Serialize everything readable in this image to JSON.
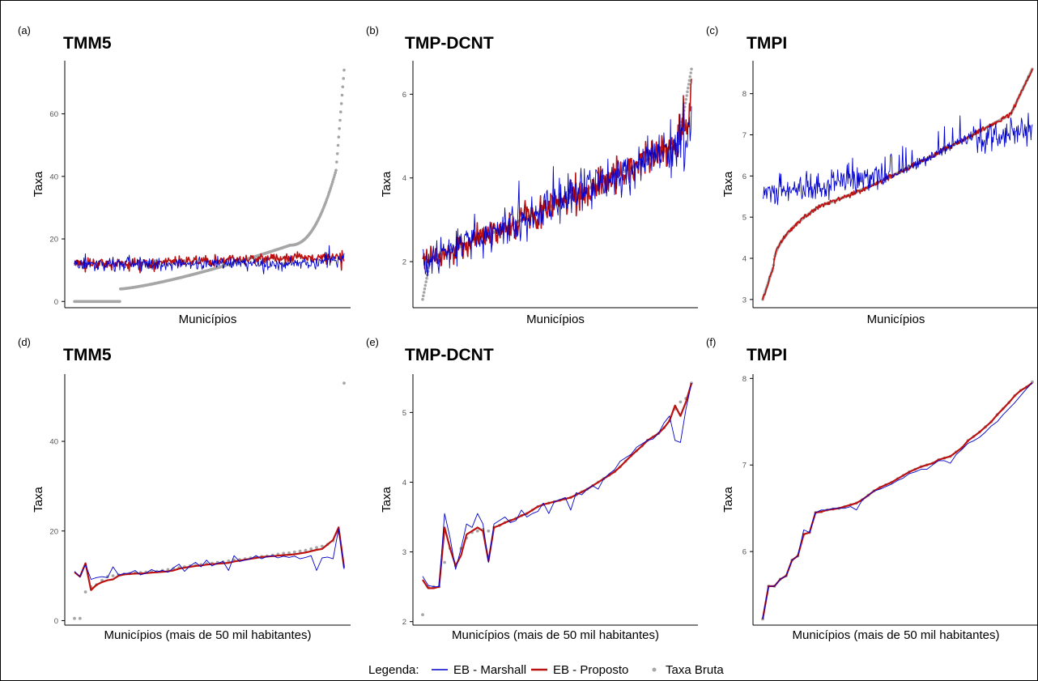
{
  "legend": {
    "title": "Legenda:",
    "items": [
      {
        "label": "EB - Marshall",
        "kind": "line",
        "color": "#0000cc"
      },
      {
        "label": "EB - Proposto",
        "kind": "line",
        "color": "#bb1111"
      },
      {
        "label": "Taxa Bruta",
        "kind": "point",
        "color": "#a6a6a6"
      }
    ]
  },
  "colors": {
    "marshall": "#0000cc",
    "proposto": "#bb1111",
    "bruta": "#a6a6a6",
    "axis": "#000000",
    "tick": "#555555"
  },
  "chart_data": [
    {
      "tag": "(a)",
      "title": "TMM5",
      "type": "line",
      "xlabel": "Municípios",
      "ylabel": "Taxa",
      "yticks": [
        0,
        20,
        40,
        60
      ],
      "ylim": [
        -2,
        77
      ],
      "n": 400,
      "dense": true,
      "shape": "tmm5_all",
      "description_free": true
    },
    {
      "tag": "(b)",
      "title": "TMP-DCNT",
      "type": "line",
      "xlabel": "Municípios",
      "ylabel": "Taxa",
      "yticks": [
        2,
        4,
        6
      ],
      "ylim": [
        0.9,
        6.8
      ],
      "n": 400,
      "dense": true,
      "shape": "dcnt_all"
    },
    {
      "tag": "(c)",
      "title": "TMPI",
      "type": "line",
      "xlabel": "Municípios",
      "ylabel": "Taxa",
      "yticks": [
        3,
        4,
        5,
        6,
        7,
        8
      ],
      "ylim": [
        2.8,
        8.8
      ],
      "n": 400,
      "dense": true,
      "shape": "tmpi_all"
    },
    {
      "tag": "(d)",
      "title": "TMM5",
      "type": "line",
      "xlabel": "Municípios (mais de 50 mil habitantes)",
      "ylabel": "Taxa",
      "yticks": [
        0,
        20,
        40
      ],
      "ylim": [
        -1,
        55
      ],
      "dense": false,
      "series": [
        {
          "name": "EB - Marshall",
          "values": [
            11,
            9.8,
            12.5,
            9.2,
            9.6,
            9.8,
            9.6,
            12,
            10.2,
            10.5,
            10.6,
            11.2,
            10.2,
            10.6,
            11.4,
            10.9,
            11.2,
            10.8,
            11.8,
            12.6,
            11,
            12.2,
            13,
            12,
            13.5,
            12.2,
            12.8,
            13.2,
            11.2,
            14.5,
            13.2,
            13.5,
            13.8,
            14.5,
            13.8,
            14.3,
            14.5,
            14,
            14.4,
            14.1,
            14.4,
            13.8,
            14.1,
            14.5,
            11.2,
            14,
            14.2,
            13.8,
            20.5,
            11.5
          ]
        },
        {
          "name": "EB - Proposto",
          "values": [
            10.8,
            9.8,
            12.8,
            6.8,
            8,
            8.6,
            9,
            9.2,
            10,
            10.3,
            10.4,
            10.5,
            10.5,
            10.6,
            10.7,
            10.8,
            10.9,
            11,
            11.2,
            11.6,
            11.8,
            12,
            12.2,
            12.3,
            12.5,
            12.6,
            12.7,
            12.8,
            12.9,
            13.2,
            13.4,
            13.6,
            13.8,
            14,
            14.2,
            14.3,
            14.4,
            14.5,
            14.6,
            14.7,
            14.8,
            15,
            15.2,
            15.5,
            15.8,
            16,
            17,
            18,
            20.8,
            11.8
          ]
        },
        {
          "name": "Taxa Bruta",
          "values": [
            0.5,
            0.5,
            6.4,
            7.5,
            8,
            9,
            9.8,
            10,
            10.2,
            10.4,
            10.5,
            10.6,
            10.7,
            10.8,
            10.9,
            11,
            11.2,
            11.4,
            11.6,
            11.8,
            12,
            12.2,
            12.3,
            12.5,
            12.7,
            12.8,
            13,
            13.1,
            13.3,
            13.5,
            13.6,
            13.8,
            14,
            14.1,
            14.3,
            14.4,
            14.6,
            14.8,
            15,
            15.1,
            15.3,
            15.5,
            15.7,
            16,
            16.3,
            16.6,
            17,
            17.8,
            19.5,
            53
          ]
        }
      ]
    },
    {
      "tag": "(e)",
      "title": "TMP-DCNT",
      "type": "line",
      "xlabel": "Municípios (mais de 50 mil habitantes)",
      "ylabel": "Taxa",
      "yticks": [
        2,
        3,
        4,
        5
      ],
      "ylim": [
        1.95,
        5.55
      ],
      "dense": false,
      "series": [
        {
          "name": "EB - Marshall",
          "values": [
            2.65,
            2.52,
            2.5,
            2.5,
            3.55,
            3.2,
            2.75,
            3.05,
            3.4,
            3.35,
            3.55,
            3.4,
            2.85,
            3.4,
            3.45,
            3.5,
            3.42,
            3.45,
            3.6,
            3.5,
            3.55,
            3.58,
            3.7,
            3.55,
            3.72,
            3.75,
            3.78,
            3.6,
            3.85,
            3.82,
            3.9,
            3.95,
            3.9,
            4.05,
            4.12,
            4.18,
            4.3,
            4.35,
            4.4,
            4.5,
            4.55,
            4.6,
            4.62,
            4.7,
            4.85,
            4.95,
            4.6,
            4.57,
            5.05,
            5.42
          ]
        },
        {
          "name": "EB - Proposto",
          "values": [
            2.6,
            2.48,
            2.48,
            2.5,
            3.35,
            3.05,
            2.8,
            2.95,
            3.25,
            3.3,
            3.35,
            3.3,
            2.87,
            3.35,
            3.38,
            3.42,
            3.45,
            3.48,
            3.52,
            3.55,
            3.6,
            3.65,
            3.68,
            3.7,
            3.72,
            3.74,
            3.76,
            3.78,
            3.82,
            3.86,
            3.9,
            3.95,
            4,
            4.05,
            4.1,
            4.15,
            4.22,
            4.3,
            4.38,
            4.45,
            4.52,
            4.6,
            4.65,
            4.7,
            4.78,
            4.88,
            5.1,
            4.95,
            5.15,
            5.42
          ]
        },
        {
          "name": "Taxa Bruta",
          "values": [
            2.1,
            2.5,
            2.5,
            2.5,
            2.85,
            3.05,
            2.8,
            3.05,
            3.2,
            3.28,
            3.3,
            3.32,
            3.3,
            3.35,
            3.38,
            3.42,
            3.45,
            3.48,
            3.52,
            3.55,
            3.6,
            3.65,
            3.68,
            3.7,
            3.72,
            3.74,
            3.76,
            3.78,
            3.82,
            3.86,
            3.9,
            3.95,
            4,
            4.05,
            4.1,
            4.15,
            4.22,
            4.3,
            4.38,
            4.45,
            4.52,
            4.6,
            4.65,
            4.7,
            4.78,
            4.88,
            5.05,
            5.15,
            5.2,
            5.42
          ]
        }
      ]
    },
    {
      "tag": "(f)",
      "title": "TMPI",
      "type": "line",
      "xlabel": "Municípios (mais de 50 mil habitantes)",
      "ylabel": "Taxa",
      "yticks": [
        6,
        7,
        8
      ],
      "ylim": [
        5.15,
        8.05
      ],
      "dense": false,
      "series": [
        {
          "name": "EB - Marshall",
          "values": [
            5.22,
            5.6,
            5.6,
            5.68,
            5.72,
            5.9,
            5.95,
            6.25,
            6.22,
            6.45,
            6.48,
            6.48,
            6.5,
            6.5,
            6.5,
            6.52,
            6.48,
            6.6,
            6.65,
            6.7,
            6.72,
            6.75,
            6.78,
            6.82,
            6.85,
            6.9,
            6.92,
            6.95,
            6.95,
            7,
            7.05,
            7.05,
            7.02,
            7.12,
            7.18,
            7.25,
            7.28,
            7.32,
            7.38,
            7.45,
            7.5,
            7.58,
            7.65,
            7.72,
            7.8,
            7.88,
            7.95
          ]
        },
        {
          "name": "EB - Proposto",
          "values": [
            5.22,
            5.6,
            5.6,
            5.68,
            5.72,
            5.9,
            5.95,
            6.2,
            6.22,
            6.45,
            6.46,
            6.48,
            6.49,
            6.5,
            6.52,
            6.54,
            6.56,
            6.6,
            6.65,
            6.7,
            6.74,
            6.77,
            6.8,
            6.84,
            6.88,
            6.92,
            6.95,
            6.98,
            7,
            7.02,
            7.06,
            7.08,
            7.1,
            7.15,
            7.2,
            7.28,
            7.33,
            7.38,
            7.44,
            7.5,
            7.58,
            7.65,
            7.72,
            7.8,
            7.86,
            7.9,
            7.95
          ]
        },
        {
          "name": "Taxa Bruta",
          "values": [
            5.22,
            5.6,
            5.6,
            5.68,
            5.72,
            5.9,
            5.95,
            6.2,
            6.22,
            6.45,
            6.46,
            6.48,
            6.49,
            6.5,
            6.52,
            6.54,
            6.56,
            6.6,
            6.65,
            6.7,
            6.74,
            6.77,
            6.8,
            6.84,
            6.88,
            6.92,
            6.95,
            6.98,
            7,
            7.02,
            7.06,
            7.08,
            7.1,
            7.15,
            7.2,
            7.28,
            7.33,
            7.38,
            7.44,
            7.5,
            7.58,
            7.65,
            7.72,
            7.8,
            7.86,
            7.9,
            7.96
          ]
        }
      ]
    }
  ]
}
